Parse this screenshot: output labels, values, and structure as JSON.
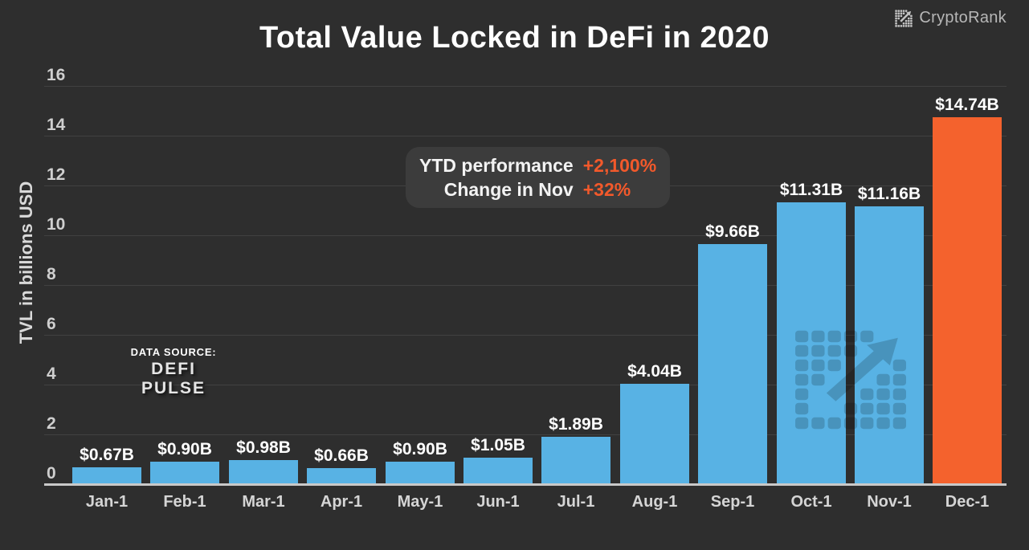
{
  "title": "Total Value Locked in DeFi in 2020",
  "brand": {
    "name": "CryptoRank"
  },
  "axis": {
    "y_title": "TVL in billions USD"
  },
  "annotation": {
    "rows": [
      {
        "label": "YTD performance",
        "value": "+2,100%"
      },
      {
        "label": "Change in Nov",
        "value": "+32%"
      }
    ]
  },
  "source": {
    "heading": "DATA SOURCE:",
    "name": "DEFI PULSE"
  },
  "colors": {
    "background": "#2e2e2e",
    "bar": "#58b2e4",
    "highlight_bar": "#f4622d",
    "accent_text": "#f2592b",
    "grid": "#414141",
    "baseline": "#c9c9c9"
  },
  "chart_data": {
    "type": "bar",
    "title": "Total Value Locked in DeFi in 2020",
    "xlabel": "",
    "ylabel": "TVL in billions USD",
    "categories": [
      "Jan-1",
      "Feb-1",
      "Mar-1",
      "Apr-1",
      "May-1",
      "Jun-1",
      "Jul-1",
      "Aug-1",
      "Sep-1",
      "Oct-1",
      "Nov-1",
      "Dec-1"
    ],
    "values": [
      0.67,
      0.9,
      0.98,
      0.66,
      0.9,
      1.05,
      1.89,
      4.04,
      9.66,
      11.31,
      11.16,
      14.74
    ],
    "bar_labels": [
      "$0.67B",
      "$0.90B",
      "$0.98B",
      "$0.66B",
      "$0.90B",
      "$1.05B",
      "$1.89B",
      "$4.04B",
      "$9.66B",
      "$11.31B",
      "$11.16B",
      "$14.74B"
    ],
    "highlight_index": 11,
    "ylim": [
      0,
      16
    ],
    "yticks": [
      16,
      14,
      12,
      10,
      8,
      6,
      4,
      2,
      0
    ],
    "grid": true,
    "legend": false,
    "annotations": [
      "YTD performance +2,100%",
      "Change in Nov +32%"
    ],
    "source": "DEFI PULSE"
  }
}
